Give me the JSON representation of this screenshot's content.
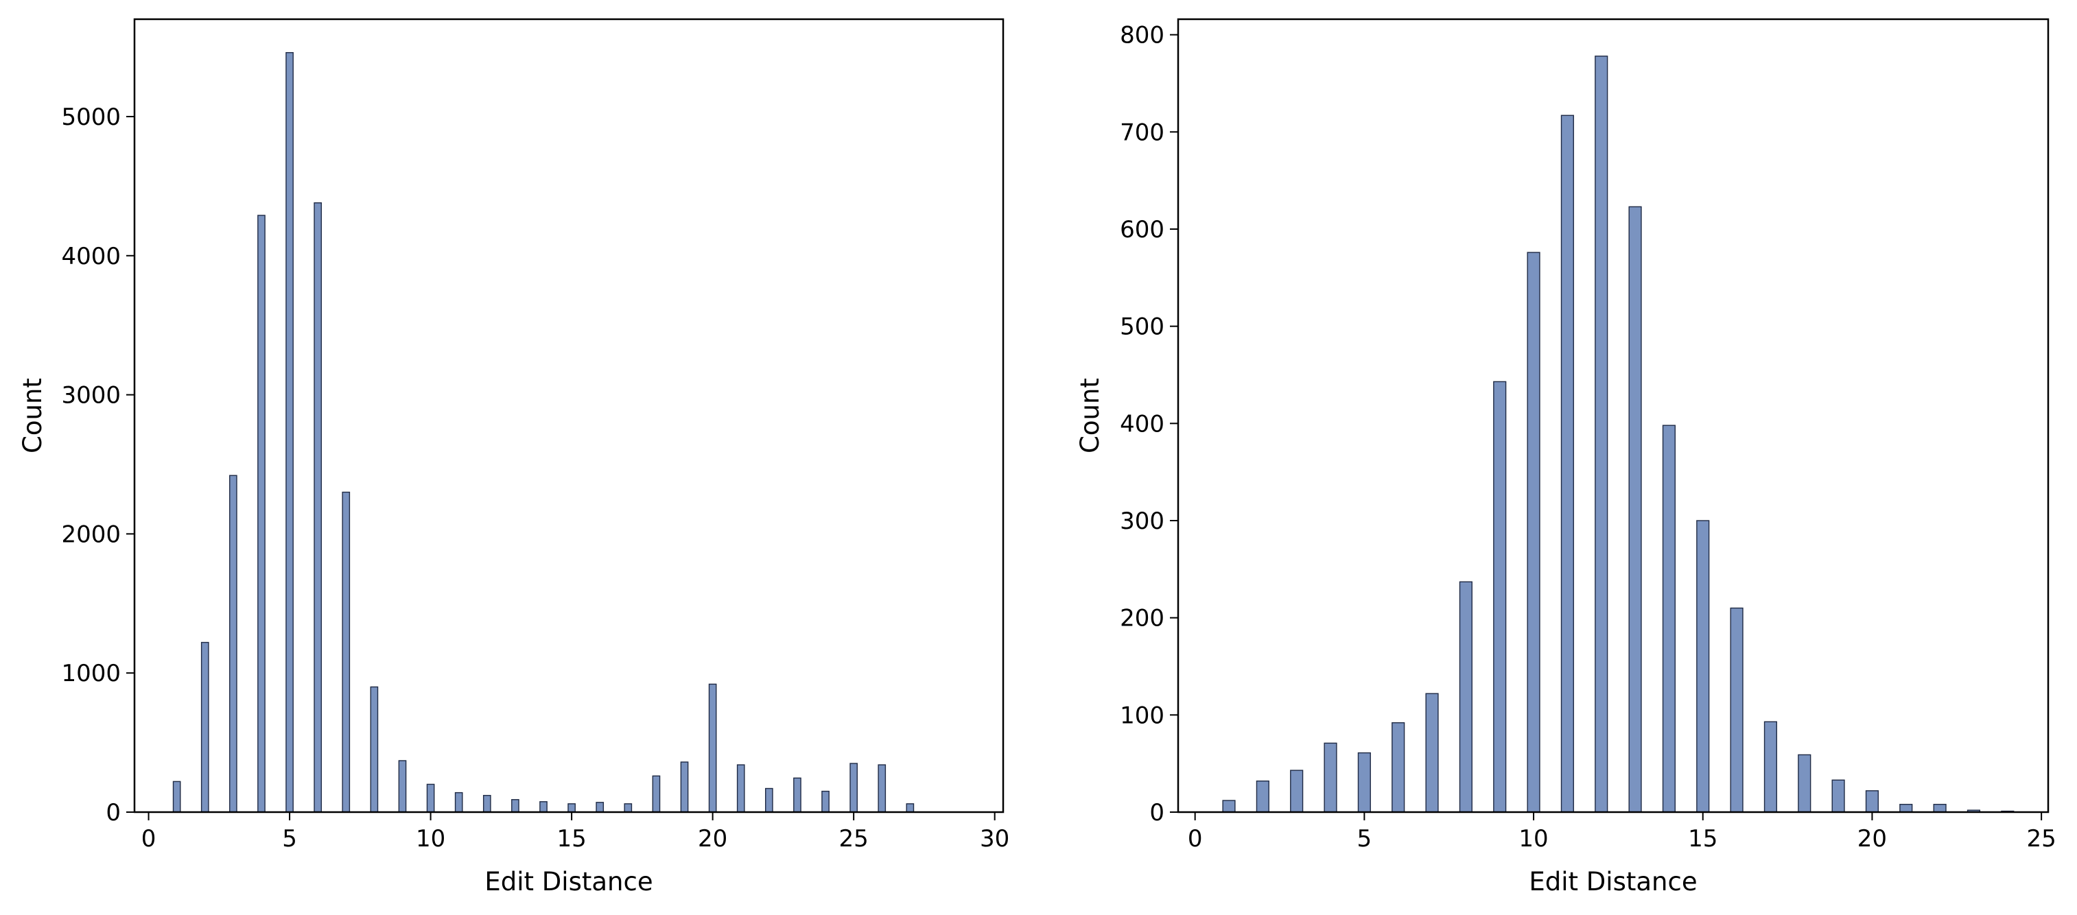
{
  "chart_data": [
    {
      "type": "bar",
      "title": "",
      "xlabel": "Edit Distance",
      "ylabel": "Count",
      "xlim": [
        -0.5,
        30.3
      ],
      "ylim": [
        0,
        5700
      ],
      "xticks": [
        0,
        5,
        10,
        15,
        20,
        25,
        30
      ],
      "xtick_labels": [
        "0",
        "5",
        "10",
        "15",
        "20",
        "25",
        "30"
      ],
      "yticks": [
        0,
        1000,
        2000,
        3000,
        4000,
        5000
      ],
      "ytick_labels": [
        "0",
        "1000",
        "2000",
        "3000",
        "4000",
        "5000"
      ],
      "grid": false,
      "bar_color": "#7a93c0",
      "edge_color": "#1f2a44",
      "bar_width": 0.25,
      "x": [
        1,
        2,
        3,
        4,
        5,
        6,
        7,
        8,
        9,
        10,
        11,
        12,
        13,
        14,
        15,
        16,
        17,
        18,
        19,
        20,
        21,
        22,
        23,
        24,
        25,
        26,
        27
      ],
      "values": [
        220,
        1220,
        2420,
        4290,
        5460,
        4380,
        2300,
        900,
        370,
        200,
        140,
        120,
        90,
        75,
        60,
        70,
        60,
        260,
        360,
        920,
        340,
        170,
        245,
        150,
        350,
        340,
        60
      ]
    },
    {
      "type": "bar",
      "title": "",
      "xlabel": "Edit Distance",
      "ylabel": "Count",
      "xlim": [
        -0.5,
        25.2
      ],
      "ylim": [
        0,
        816
      ],
      "xticks": [
        0,
        5,
        10,
        15,
        20,
        25
      ],
      "xtick_labels": [
        "0",
        "5",
        "10",
        "15",
        "20",
        "25"
      ],
      "yticks": [
        0,
        100,
        200,
        300,
        400,
        500,
        600,
        700,
        800
      ],
      "ytick_labels": [
        "0",
        "100",
        "200",
        "300",
        "400",
        "500",
        "600",
        "700",
        "800"
      ],
      "grid": false,
      "bar_color": "#7a93c0",
      "edge_color": "#1f2a44",
      "bar_width": 0.36,
      "x": [
        1,
        2,
        3,
        4,
        5,
        6,
        7,
        8,
        9,
        10,
        11,
        12,
        13,
        14,
        15,
        16,
        17,
        18,
        19,
        20,
        21,
        22,
        23,
        24
      ],
      "values": [
        12,
        32,
        43,
        71,
        61,
        92,
        122,
        237,
        443,
        576,
        717,
        778,
        623,
        398,
        300,
        210,
        93,
        59,
        33,
        22,
        8,
        8,
        2,
        1
      ]
    }
  ]
}
